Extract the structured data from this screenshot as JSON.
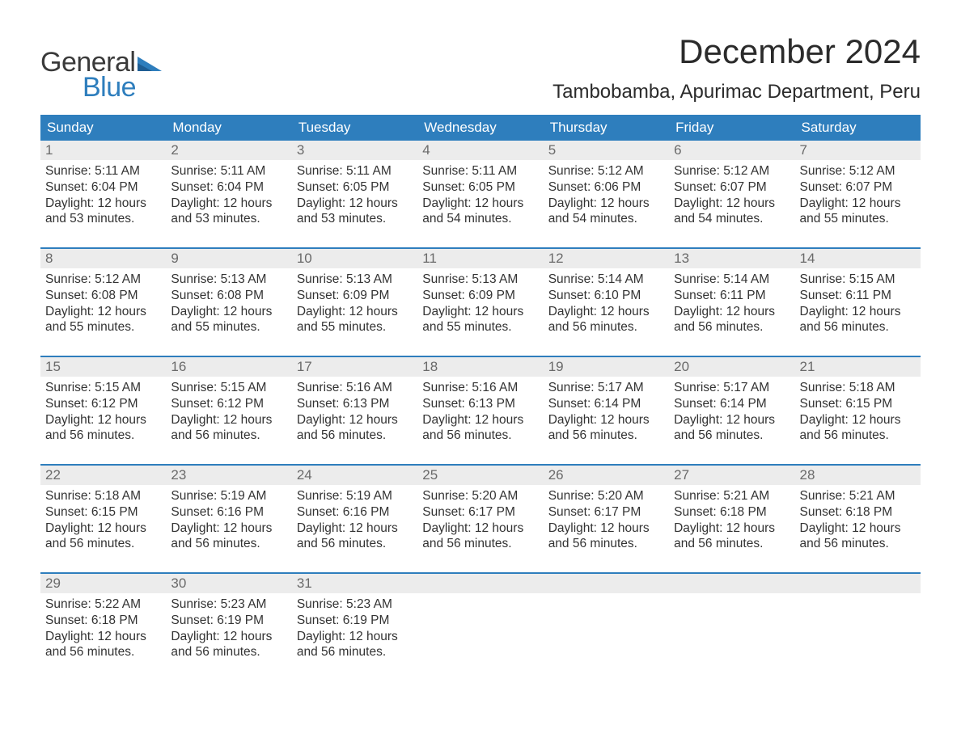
{
  "logo": {
    "word1": "General",
    "word2": "Blue",
    "icon_color": "#2e7ebd",
    "word1_color": "#3a3a3a",
    "word2_color": "#2e7ebd"
  },
  "title": "December 2024",
  "location": "Tambobamba, Apurimac Department, Peru",
  "colors": {
    "header_bg": "#2e7ebd",
    "header_text": "#ffffff",
    "daynum_bg": "#ececec",
    "daynum_text": "#6a6a6a",
    "body_text": "#333333",
    "row_border": "#2e7ebd",
    "page_bg": "#ffffff"
  },
  "typography": {
    "title_fontsize": 42,
    "location_fontsize": 24,
    "dayheader_fontsize": 17,
    "daynum_fontsize": 17,
    "details_fontsize": 15.5,
    "logo_fontsize": 34
  },
  "day_headers": [
    "Sunday",
    "Monday",
    "Tuesday",
    "Wednesday",
    "Thursday",
    "Friday",
    "Saturday"
  ],
  "labels": {
    "sunrise_prefix": "Sunrise: ",
    "sunset_prefix": "Sunset: ",
    "daylight_prefix": "Daylight: ",
    "hours_word": " hours",
    "and_word": "and ",
    "minutes_suffix": " minutes."
  },
  "weeks": [
    [
      {
        "day": "1",
        "sunrise": "5:11 AM",
        "sunset": "6:04 PM",
        "dl_h": "12",
        "dl_m": "53"
      },
      {
        "day": "2",
        "sunrise": "5:11 AM",
        "sunset": "6:04 PM",
        "dl_h": "12",
        "dl_m": "53"
      },
      {
        "day": "3",
        "sunrise": "5:11 AM",
        "sunset": "6:05 PM",
        "dl_h": "12",
        "dl_m": "53"
      },
      {
        "day": "4",
        "sunrise": "5:11 AM",
        "sunset": "6:05 PM",
        "dl_h": "12",
        "dl_m": "54"
      },
      {
        "day": "5",
        "sunrise": "5:12 AM",
        "sunset": "6:06 PM",
        "dl_h": "12",
        "dl_m": "54"
      },
      {
        "day": "6",
        "sunrise": "5:12 AM",
        "sunset": "6:07 PM",
        "dl_h": "12",
        "dl_m": "54"
      },
      {
        "day": "7",
        "sunrise": "5:12 AM",
        "sunset": "6:07 PM",
        "dl_h": "12",
        "dl_m": "55"
      }
    ],
    [
      {
        "day": "8",
        "sunrise": "5:12 AM",
        "sunset": "6:08 PM",
        "dl_h": "12",
        "dl_m": "55"
      },
      {
        "day": "9",
        "sunrise": "5:13 AM",
        "sunset": "6:08 PM",
        "dl_h": "12",
        "dl_m": "55"
      },
      {
        "day": "10",
        "sunrise": "5:13 AM",
        "sunset": "6:09 PM",
        "dl_h": "12",
        "dl_m": "55"
      },
      {
        "day": "11",
        "sunrise": "5:13 AM",
        "sunset": "6:09 PM",
        "dl_h": "12",
        "dl_m": "55"
      },
      {
        "day": "12",
        "sunrise": "5:14 AM",
        "sunset": "6:10 PM",
        "dl_h": "12",
        "dl_m": "56"
      },
      {
        "day": "13",
        "sunrise": "5:14 AM",
        "sunset": "6:11 PM",
        "dl_h": "12",
        "dl_m": "56"
      },
      {
        "day": "14",
        "sunrise": "5:15 AM",
        "sunset": "6:11 PM",
        "dl_h": "12",
        "dl_m": "56"
      }
    ],
    [
      {
        "day": "15",
        "sunrise": "5:15 AM",
        "sunset": "6:12 PM",
        "dl_h": "12",
        "dl_m": "56"
      },
      {
        "day": "16",
        "sunrise": "5:15 AM",
        "sunset": "6:12 PM",
        "dl_h": "12",
        "dl_m": "56"
      },
      {
        "day": "17",
        "sunrise": "5:16 AM",
        "sunset": "6:13 PM",
        "dl_h": "12",
        "dl_m": "56"
      },
      {
        "day": "18",
        "sunrise": "5:16 AM",
        "sunset": "6:13 PM",
        "dl_h": "12",
        "dl_m": "56"
      },
      {
        "day": "19",
        "sunrise": "5:17 AM",
        "sunset": "6:14 PM",
        "dl_h": "12",
        "dl_m": "56"
      },
      {
        "day": "20",
        "sunrise": "5:17 AM",
        "sunset": "6:14 PM",
        "dl_h": "12",
        "dl_m": "56"
      },
      {
        "day": "21",
        "sunrise": "5:18 AM",
        "sunset": "6:15 PM",
        "dl_h": "12",
        "dl_m": "56"
      }
    ],
    [
      {
        "day": "22",
        "sunrise": "5:18 AM",
        "sunset": "6:15 PM",
        "dl_h": "12",
        "dl_m": "56"
      },
      {
        "day": "23",
        "sunrise": "5:19 AM",
        "sunset": "6:16 PM",
        "dl_h": "12",
        "dl_m": "56"
      },
      {
        "day": "24",
        "sunrise": "5:19 AM",
        "sunset": "6:16 PM",
        "dl_h": "12",
        "dl_m": "56"
      },
      {
        "day": "25",
        "sunrise": "5:20 AM",
        "sunset": "6:17 PM",
        "dl_h": "12",
        "dl_m": "56"
      },
      {
        "day": "26",
        "sunrise": "5:20 AM",
        "sunset": "6:17 PM",
        "dl_h": "12",
        "dl_m": "56"
      },
      {
        "day": "27",
        "sunrise": "5:21 AM",
        "sunset": "6:18 PM",
        "dl_h": "12",
        "dl_m": "56"
      },
      {
        "day": "28",
        "sunrise": "5:21 AM",
        "sunset": "6:18 PM",
        "dl_h": "12",
        "dl_m": "56"
      }
    ],
    [
      {
        "day": "29",
        "sunrise": "5:22 AM",
        "sunset": "6:18 PM",
        "dl_h": "12",
        "dl_m": "56"
      },
      {
        "day": "30",
        "sunrise": "5:23 AM",
        "sunset": "6:19 PM",
        "dl_h": "12",
        "dl_m": "56"
      },
      {
        "day": "31",
        "sunrise": "5:23 AM",
        "sunset": "6:19 PM",
        "dl_h": "12",
        "dl_m": "56"
      },
      null,
      null,
      null,
      null
    ]
  ]
}
